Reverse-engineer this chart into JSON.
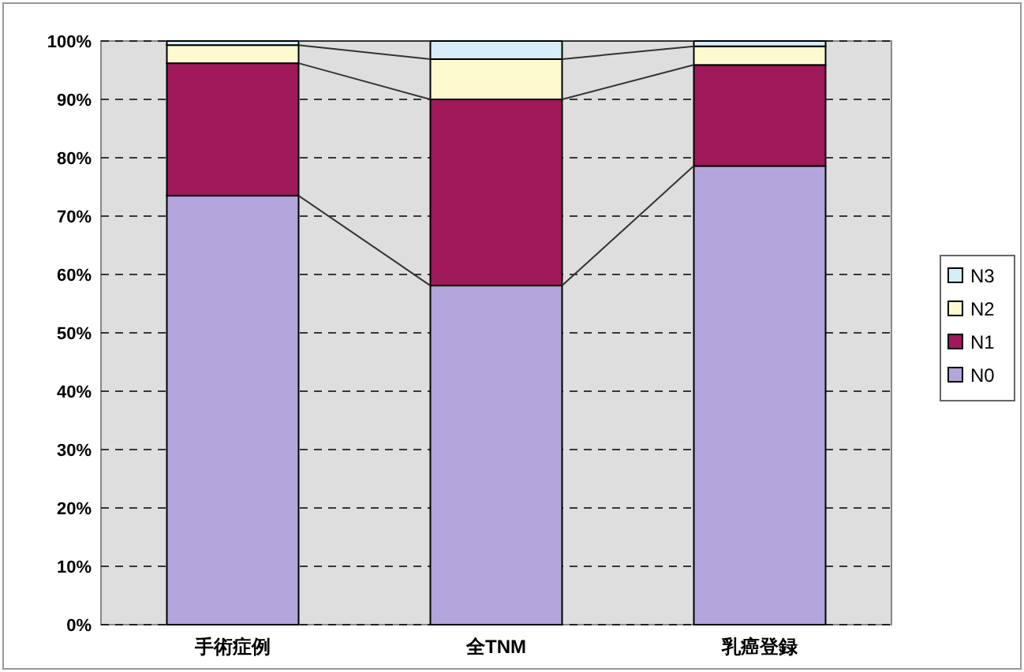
{
  "chart_data": {
    "type": "bar",
    "stacked": true,
    "categories": [
      "手術症例",
      "全TNM",
      "乳癌登録"
    ],
    "series": [
      {
        "name": "N0",
        "color": "#b3a6dc",
        "values": [
          73.5,
          58.1,
          78.6
        ]
      },
      {
        "name": "N1",
        "color": "#a0195a",
        "values": [
          22.7,
          31.9,
          17.3
        ]
      },
      {
        "name": "N2",
        "color": "#fdfad0",
        "values": [
          3.1,
          6.9,
          3.2
        ]
      },
      {
        "name": "N3",
        "color": "#d6eefa",
        "values": [
          0.7,
          3.1,
          0.9
        ]
      }
    ],
    "ylim": [
      0,
      100
    ],
    "yticks": [
      {
        "value": 0,
        "label": "0%"
      },
      {
        "value": 10,
        "label": "10%"
      },
      {
        "value": 20,
        "label": "20%"
      },
      {
        "value": 30,
        "label": "30%"
      },
      {
        "value": 40,
        "label": "40%"
      },
      {
        "value": 50,
        "label": "50%"
      },
      {
        "value": 60,
        "label": "60%"
      },
      {
        "value": 70,
        "label": "70%"
      },
      {
        "value": 80,
        "label": "80%"
      },
      {
        "value": 90,
        "label": "90%"
      },
      {
        "value": 100,
        "label": "100%"
      }
    ],
    "grid": "y",
    "legend": "right"
  }
}
